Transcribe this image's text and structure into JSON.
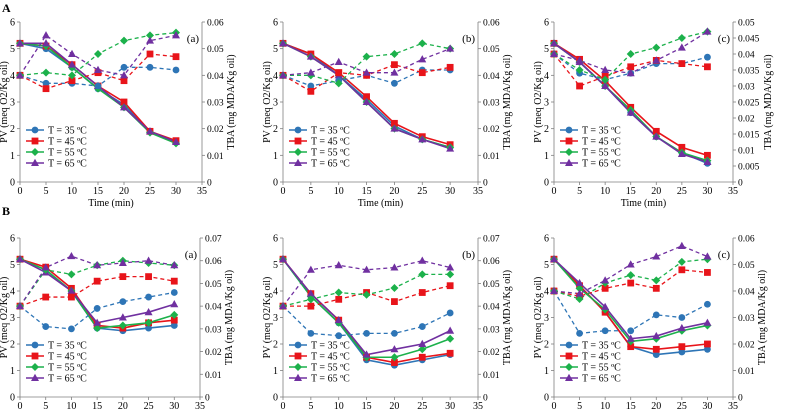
{
  "section_labels": [
    "A",
    "B"
  ],
  "series_styles": [
    {
      "color": "#2e75b6",
      "marker": "circle"
    },
    {
      "color": "#e8141a",
      "marker": "square"
    },
    {
      "color": "#1cb14b",
      "marker": "diamond"
    },
    {
      "color": "#7030a0",
      "marker": "triangle"
    }
  ],
  "chart_data": [
    {
      "type": "line",
      "panel": "(a)",
      "row": "A",
      "xlabel": "Time (min)",
      "ylabel": "PV (meq O2/Kg oil)",
      "y2label": "TBA (mg MDA/Kg oil)",
      "xlim": [
        0,
        35
      ],
      "xticks": [
        "0",
        "5",
        "10",
        "15",
        "20",
        "25",
        "30",
        "35"
      ],
      "ylim": [
        0,
        6
      ],
      "yticks": [
        "0",
        "1",
        "2",
        "3",
        "4",
        "5",
        "6"
      ],
      "y2lim": [
        0,
        0.06
      ],
      "y2ticks": [
        "0",
        "0.01",
        "0.02",
        "0.03",
        "0.04",
        "0.05",
        "0.06"
      ],
      "x": [
        0,
        5,
        10,
        15,
        20,
        25,
        30
      ],
      "legend": [
        "T = 35 ºC",
        "T = 45 ºC",
        "T = 55 ºC",
        "T = 65 ºC"
      ],
      "pv": [
        [
          5.2,
          5.0,
          4.3,
          3.5,
          2.9,
          1.9,
          1.5
        ],
        [
          5.2,
          5.1,
          4.4,
          3.6,
          3.0,
          1.9,
          1.55
        ],
        [
          5.2,
          5.1,
          4.3,
          3.5,
          2.8,
          1.85,
          1.45
        ],
        [
          5.2,
          5.2,
          4.4,
          3.6,
          2.8,
          1.9,
          1.5
        ]
      ],
      "tba": [
        [
          0.04,
          0.037,
          0.037,
          0.036,
          0.043,
          0.043,
          0.042
        ],
        [
          0.04,
          0.035,
          0.038,
          0.041,
          0.038,
          0.048,
          0.047
        ],
        [
          0.04,
          0.041,
          0.04,
          0.048,
          0.053,
          0.055,
          0.056
        ],
        [
          0.04,
          0.055,
          0.048,
          0.042,
          0.04,
          0.053,
          0.055
        ]
      ]
    },
    {
      "type": "line",
      "panel": "(b)",
      "row": "A",
      "xlabel": "Time (min)",
      "ylabel": "PV (meq O2/Kg oil)",
      "y2label": "TBA (mg MDA/Kg oil)",
      "xlim": [
        0,
        35
      ],
      "xticks": [
        "0",
        "5",
        "10",
        "15",
        "20",
        "25",
        "30",
        "35"
      ],
      "ylim": [
        0,
        6
      ],
      "yticks": [
        "0",
        "1",
        "2",
        "3",
        "4",
        "5",
        "6"
      ],
      "y2lim": [
        0,
        0.06
      ],
      "y2ticks": [
        "0",
        "0.01",
        "0.02",
        "0.03",
        "0.04",
        "0.05",
        "0.06"
      ],
      "x": [
        0,
        5,
        10,
        15,
        20,
        25,
        30
      ],
      "legend": [
        "T = 35 ºC",
        "T = 45 ºC",
        "T = 55 ºC",
        "T = 65 ºC"
      ],
      "pv": [
        [
          5.2,
          4.8,
          4.0,
          3.1,
          2.1,
          1.6,
          1.3
        ],
        [
          5.2,
          4.8,
          4.1,
          3.2,
          2.2,
          1.7,
          1.4
        ],
        [
          5.2,
          4.7,
          4.0,
          3.0,
          2.0,
          1.6,
          1.3
        ],
        [
          5.2,
          4.7,
          4.0,
          3.0,
          2.0,
          1.6,
          1.25
        ]
      ],
      "tba": [
        [
          0.04,
          0.036,
          0.038,
          0.04,
          0.037,
          0.042,
          0.042
        ],
        [
          0.04,
          0.034,
          0.041,
          0.04,
          0.044,
          0.041,
          0.043
        ],
        [
          0.04,
          0.04,
          0.037,
          0.047,
          0.048,
          0.052,
          0.05
        ],
        [
          0.04,
          0.041,
          0.045,
          0.041,
          0.041,
          0.046,
          0.05
        ]
      ]
    },
    {
      "type": "line",
      "panel": "(c)",
      "row": "A",
      "xlabel": "Time (min)",
      "ylabel": "PV (meq O2/Kg oil)",
      "y2label": "TBA (mg MDA/Kg oil)",
      "xlim": [
        0,
        35
      ],
      "xticks": [
        "0",
        "5",
        "10",
        "15",
        "20",
        "25",
        "30",
        "35"
      ],
      "ylim": [
        0,
        6
      ],
      "yticks": [
        "0",
        "1",
        "2",
        "3",
        "4",
        "5",
        "6"
      ],
      "y2lim": [
        0,
        0.05
      ],
      "y2ticks": [
        "0",
        "0.005",
        "0.01",
        "0.015",
        "0.02",
        "0.025",
        "0.03",
        "0.035",
        "0.04",
        "0.045",
        "0.05"
      ],
      "x": [
        0,
        5,
        10,
        15,
        20,
        25,
        30
      ],
      "legend": [
        "T = 35 ºC",
        "T = 45 ºC",
        "T = 55 ºC",
        "T = 65 ºC"
      ],
      "pv": [
        [
          5.2,
          4.5,
          3.6,
          2.6,
          1.7,
          1.1,
          0.7
        ],
        [
          5.2,
          4.6,
          3.8,
          2.8,
          1.9,
          1.3,
          1.0
        ],
        [
          5.2,
          4.5,
          3.6,
          2.7,
          1.7,
          1.1,
          0.8
        ],
        [
          5.2,
          4.5,
          3.6,
          2.6,
          1.7,
          1.05,
          0.75
        ]
      ],
      "tba": [
        [
          0.04,
          0.034,
          0.032,
          0.034,
          0.037,
          0.037,
          0.039
        ],
        [
          0.04,
          0.03,
          0.033,
          0.036,
          0.038,
          0.037,
          0.036
        ],
        [
          0.04,
          0.035,
          0.032,
          0.04,
          0.042,
          0.045,
          0.047
        ],
        [
          0.04,
          0.038,
          0.035,
          0.034,
          0.038,
          0.042,
          0.047
        ]
      ]
    },
    {
      "type": "line",
      "panel": "(a)",
      "row": "B",
      "xlabel": "Time (min)",
      "ylabel": "PV (meq O2/Kg oil)",
      "y2label": "TBA (mg MDA/Kg oil)",
      "xlim": [
        0,
        35
      ],
      "xticks": [
        "0",
        "5",
        "10",
        "15",
        "20",
        "25",
        "30",
        "35"
      ],
      "ylim": [
        0,
        6
      ],
      "yticks": [
        "0",
        "1",
        "2",
        "3",
        "4",
        "5",
        "6"
      ],
      "y2lim": [
        0,
        0.07
      ],
      "y2ticks": [
        "0",
        "0.01",
        "0.02",
        "0.03",
        "0.04",
        "0.05",
        "0.06",
        "0.07"
      ],
      "x": [
        0,
        5,
        10,
        15,
        20,
        25,
        30
      ],
      "legend": [
        "T = 35 ºC",
        "T = 45 ºC",
        "T = 55 ºC",
        "T = 65 ºC"
      ],
      "pv": [
        [
          5.2,
          4.8,
          4.0,
          2.6,
          2.5,
          2.6,
          2.7
        ],
        [
          5.2,
          4.9,
          4.1,
          2.7,
          2.6,
          2.8,
          2.9
        ],
        [
          5.2,
          4.8,
          4.0,
          2.6,
          2.7,
          2.8,
          3.1
        ],
        [
          5.2,
          4.7,
          4.0,
          2.8,
          3.0,
          3.2,
          3.5
        ]
      ],
      "tba": [
        [
          0.04,
          0.031,
          0.03,
          0.039,
          0.042,
          0.044,
          0.046
        ],
        [
          0.04,
          0.044,
          0.044,
          0.051,
          0.053,
          0.053,
          0.051
        ],
        [
          0.04,
          0.056,
          0.054,
          0.058,
          0.06,
          0.059,
          0.058
        ],
        [
          0.04,
          0.057,
          0.062,
          0.058,
          0.059,
          0.06,
          0.058
        ]
      ]
    },
    {
      "type": "line",
      "panel": "(b)",
      "row": "B",
      "xlabel": "Time (min)",
      "ylabel": "PV (meq O2/Kg oil)",
      "y2label": "TBA (mg MDA/Kg oil)",
      "xlim": [
        0,
        35
      ],
      "xticks": [
        "0",
        "5",
        "10",
        "15",
        "20",
        "25",
        "30",
        "35"
      ],
      "ylim": [
        0,
        6
      ],
      "yticks": [
        "0",
        "1",
        "2",
        "3",
        "4",
        "5",
        "6"
      ],
      "y2lim": [
        0,
        0.07
      ],
      "y2ticks": [
        "0",
        "0.01",
        "0.02",
        "0.03",
        "0.04",
        "0.05",
        "0.06",
        "0.07"
      ],
      "x": [
        0,
        5,
        10,
        15,
        20,
        25,
        30
      ],
      "legend": [
        "T = 35 ºC",
        "T = 45 ºC",
        "T = 55 ºC",
        "T = 65 ºC"
      ],
      "pv": [
        [
          5.2,
          3.8,
          2.8,
          1.4,
          1.2,
          1.4,
          1.6
        ],
        [
          5.2,
          3.9,
          2.9,
          1.5,
          1.3,
          1.5,
          1.65
        ],
        [
          5.2,
          3.8,
          2.8,
          1.5,
          1.5,
          1.8,
          2.2
        ],
        [
          5.2,
          3.9,
          2.9,
          1.6,
          1.8,
          2.0,
          2.5
        ]
      ],
      "tba": [
        [
          0.04,
          0.028,
          0.027,
          0.028,
          0.028,
          0.031,
          0.037
        ],
        [
          0.04,
          0.04,
          0.043,
          0.046,
          0.042,
          0.046,
          0.049
        ],
        [
          0.04,
          0.043,
          0.046,
          0.045,
          0.048,
          0.054,
          0.054
        ],
        [
          0.04,
          0.056,
          0.058,
          0.056,
          0.057,
          0.06,
          0.057
        ]
      ]
    },
    {
      "type": "line",
      "panel": "(c)",
      "row": "B",
      "xlabel": "Time (min)",
      "ylabel": "PV (meq O2/Kg oil)",
      "y2label": "TBA (mg MDA/Kg oil)",
      "xlim": [
        0,
        35
      ],
      "xticks": [
        "0",
        "5",
        "10",
        "15",
        "20",
        "25",
        "30",
        "35"
      ],
      "ylim": [
        0,
        6
      ],
      "yticks": [
        "0",
        "1",
        "2",
        "3",
        "4",
        "5",
        "6"
      ],
      "y2lim": [
        0,
        0.06
      ],
      "y2ticks": [
        "0",
        "0.01",
        "0.02",
        "0.03",
        "0.04",
        "0.05",
        "0.06"
      ],
      "x": [
        0,
        5,
        10,
        15,
        20,
        25,
        30
      ],
      "legend": [
        "T = 35 ºC",
        "T = 45 ºC",
        "T = 55 ºC",
        "T = 65 ºC"
      ],
      "pv": [
        [
          5.2,
          4.2,
          3.2,
          1.9,
          1.6,
          1.7,
          1.8
        ],
        [
          5.2,
          4.2,
          3.2,
          1.9,
          1.8,
          1.9,
          2.0
        ],
        [
          5.2,
          4.1,
          3.3,
          2.1,
          2.2,
          2.5,
          2.7
        ],
        [
          5.2,
          4.3,
          3.4,
          2.2,
          2.3,
          2.6,
          2.8
        ]
      ],
      "tba": [
        [
          0.04,
          0.024,
          0.025,
          0.025,
          0.031,
          0.03,
          0.035
        ],
        [
          0.04,
          0.038,
          0.041,
          0.043,
          0.041,
          0.048,
          0.047
        ],
        [
          0.04,
          0.037,
          0.043,
          0.046,
          0.044,
          0.051,
          0.052
        ],
        [
          0.04,
          0.039,
          0.044,
          0.05,
          0.053,
          0.057,
          0.053
        ]
      ]
    }
  ]
}
